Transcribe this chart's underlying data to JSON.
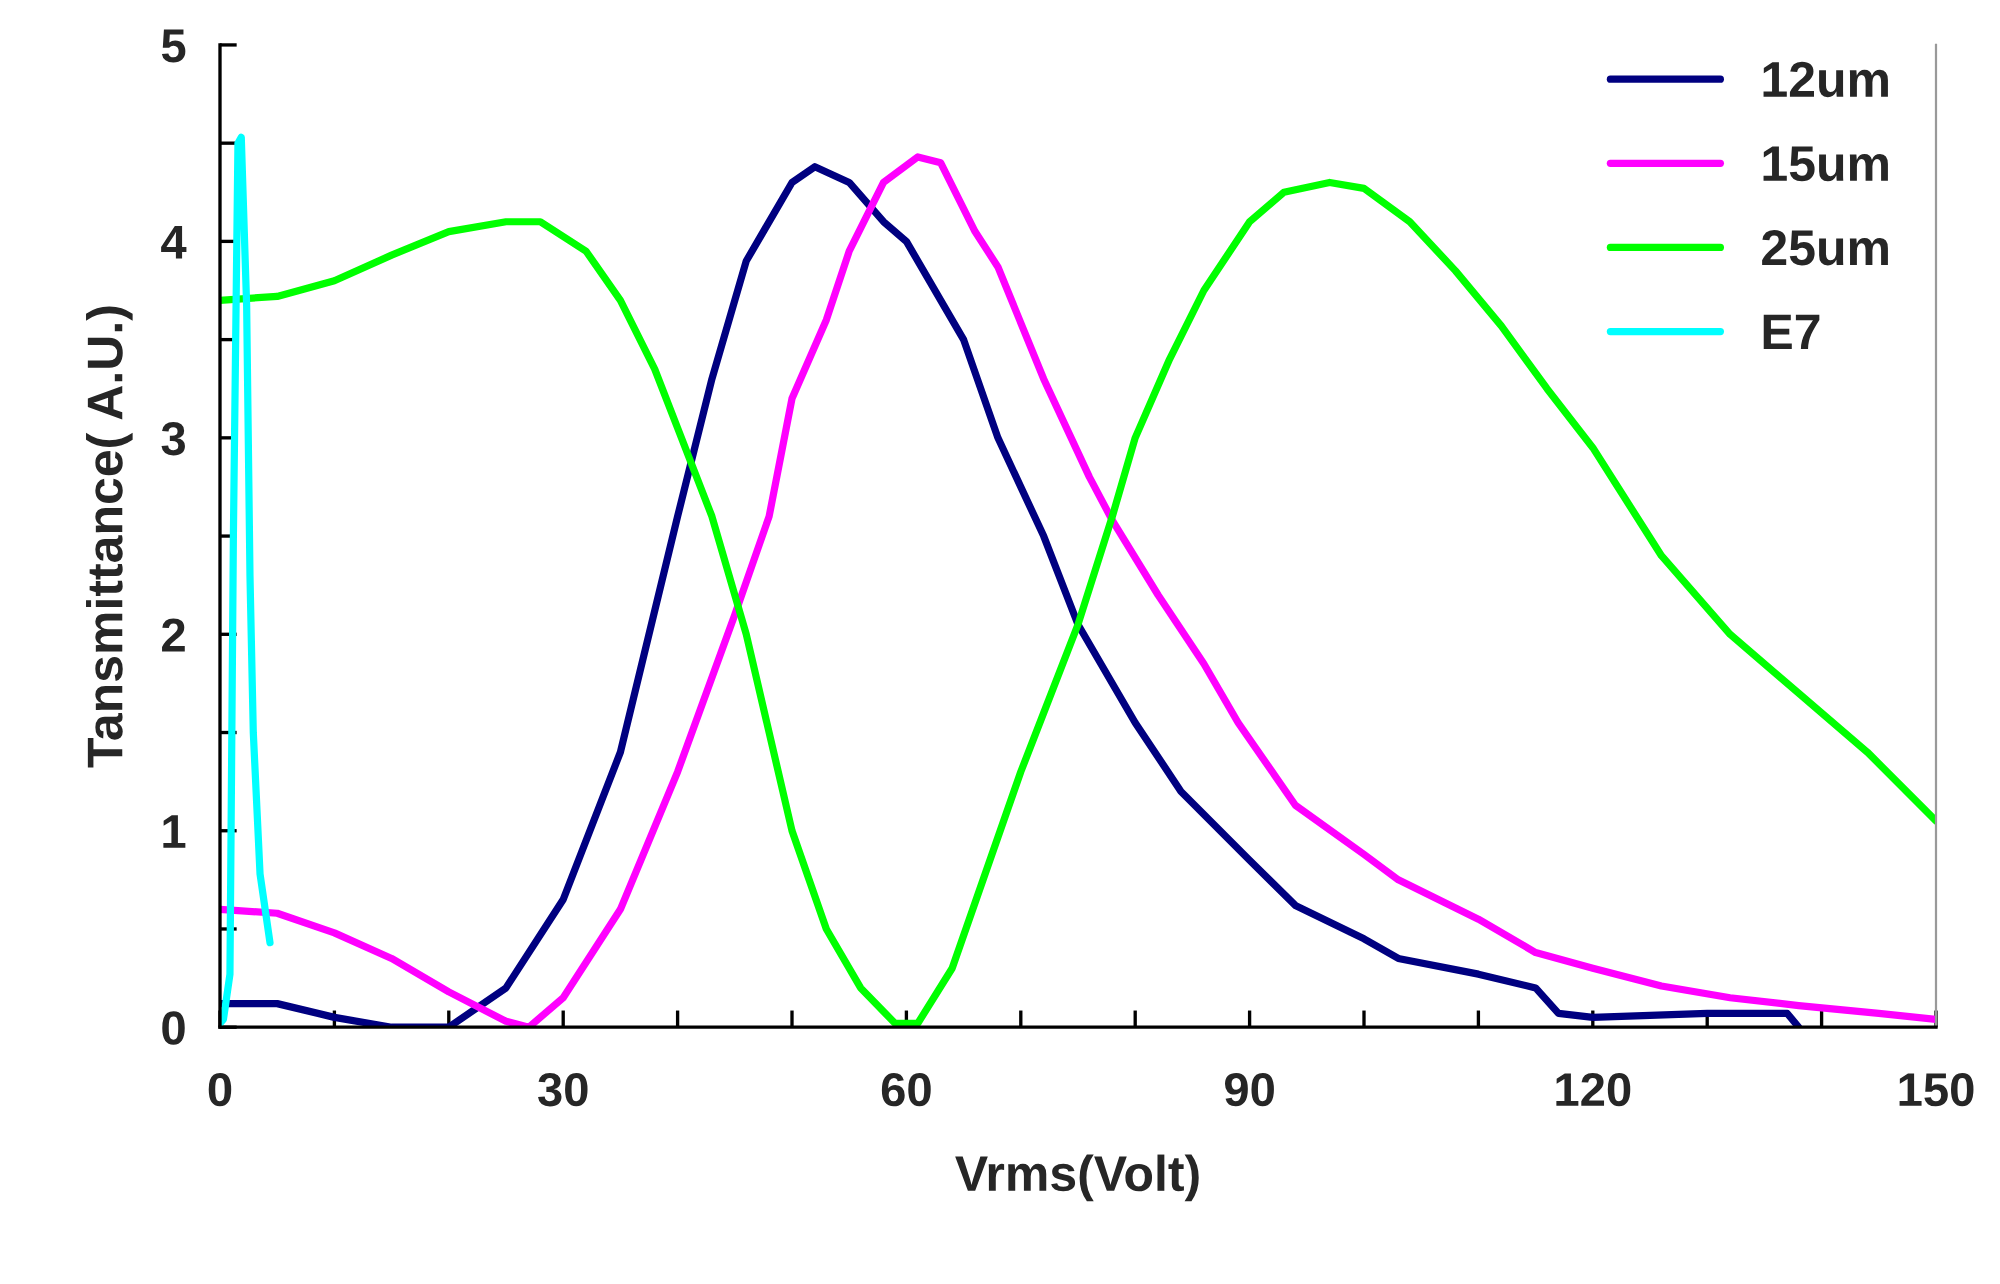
{
  "chart_data": {
    "type": "line",
    "xlabel": "Vrms(Volt)",
    "ylabel": "Tansmittance( A.U.)",
    "xlim": [
      0,
      150
    ],
    "ylim": [
      0,
      5
    ],
    "xticks": [
      0,
      {
        "value": 10,
        "label": null
      },
      {
        "value": 20,
        "label": null
      },
      30,
      {
        "value": 40,
        "label": null
      },
      {
        "value": 50,
        "label": null
      },
      60,
      {
        "value": 70,
        "label": null
      },
      {
        "value": 80,
        "label": null
      },
      90,
      {
        "value": 100,
        "label": null
      },
      {
        "value": 110,
        "label": null
      },
      120,
      {
        "value": 130,
        "label": null
      },
      {
        "value": 140,
        "label": null
      },
      150
    ],
    "yticks": [
      0,
      {
        "value": 0.5,
        "label": null
      },
      1,
      {
        "value": 1.5,
        "label": null
      },
      2,
      {
        "value": 2.5,
        "label": null
      },
      3,
      {
        "value": 3.5,
        "label": null
      },
      4,
      {
        "value": 4.5,
        "label": null
      },
      5
    ],
    "grid": false,
    "legend": "top right",
    "marker": "none",
    "line_style": "solid",
    "series": [
      {
        "name": "12um",
        "color": "#000080",
        "x": [
          0,
          5,
          10,
          15,
          20,
          25,
          30,
          35,
          40,
          43,
          46,
          50,
          52,
          55,
          58,
          60,
          65,
          68,
          72,
          75,
          80,
          84,
          90,
          94,
          100,
          103,
          110,
          115,
          117,
          120,
          130,
          137,
          138
        ],
        "values": [
          0.12,
          0.12,
          0.05,
          0,
          0,
          0.2,
          0.65,
          1.4,
          2.6,
          3.3,
          3.9,
          4.3,
          4.38,
          4.3,
          4.1,
          4.0,
          3.5,
          3.0,
          2.5,
          2.05,
          1.55,
          1.2,
          0.85,
          0.62,
          0.45,
          0.35,
          0.27,
          0.2,
          0.07,
          0.05,
          0.07,
          0.07,
          0
        ]
      },
      {
        "name": "15um",
        "color": "#ff00ff",
        "x": [
          0,
          5,
          10,
          15,
          20,
          25,
          27,
          30,
          35,
          40,
          45,
          48,
          50,
          53,
          55,
          58,
          61,
          63,
          66,
          68,
          72,
          76,
          78,
          82,
          86,
          89,
          94,
          100,
          103,
          110,
          115,
          120,
          126,
          132,
          138,
          145,
          150
        ],
        "values": [
          0.6,
          0.58,
          0.48,
          0.35,
          0.18,
          0.03,
          0,
          0.15,
          0.6,
          1.3,
          2.1,
          2.6,
          3.2,
          3.6,
          3.95,
          4.3,
          4.43,
          4.4,
          4.05,
          3.87,
          3.3,
          2.8,
          2.58,
          2.2,
          1.85,
          1.55,
          1.13,
          0.88,
          0.75,
          0.55,
          0.38,
          0.3,
          0.21,
          0.15,
          0.11,
          0.07,
          0.04
        ]
      },
      {
        "name": "25um",
        "color": "#00ff00",
        "x": [
          0,
          5,
          10,
          15,
          20,
          25,
          28,
          32,
          35,
          38,
          40,
          43,
          46,
          48,
          50,
          53,
          56,
          59,
          61,
          64,
          67,
          70,
          72,
          75,
          78,
          80,
          83,
          86,
          90,
          93,
          97,
          100,
          104,
          108,
          112,
          116,
          120,
          126,
          132,
          138,
          144,
          150
        ],
        "values": [
          3.7,
          3.72,
          3.8,
          3.93,
          4.05,
          4.1,
          4.1,
          3.95,
          3.7,
          3.35,
          3.05,
          2.6,
          2.0,
          1.5,
          1.0,
          0.5,
          0.2,
          0.02,
          0.02,
          0.3,
          0.8,
          1.3,
          1.6,
          2.05,
          2.6,
          3.0,
          3.4,
          3.75,
          4.1,
          4.25,
          4.3,
          4.27,
          4.1,
          3.85,
          3.57,
          3.25,
          2.95,
          2.4,
          2.0,
          1.7,
          1.4,
          1.05
        ]
      },
      {
        "name": "E7",
        "color": "#00ffff",
        "x": [
          0,
          0.3,
          0.87,
          1.17,
          1.57,
          1.86,
          2.33,
          2.62,
          2.91,
          3.5,
          4.37
        ],
        "values": [
          0.02,
          0.04,
          0.27,
          2.5,
          4.5,
          4.53,
          3.67,
          2.3,
          1.5,
          0.78,
          0.43
        ]
      }
    ]
  }
}
